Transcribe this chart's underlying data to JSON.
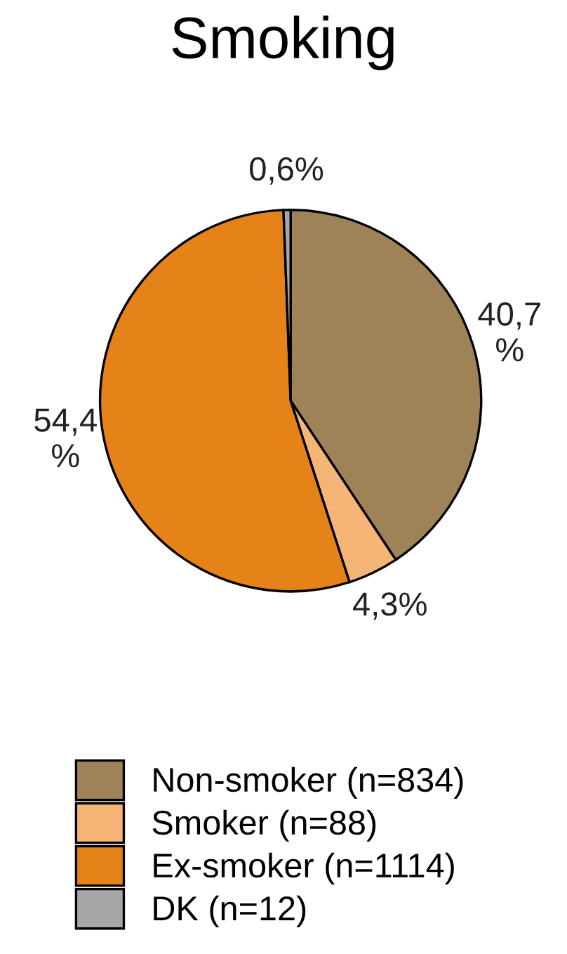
{
  "chart_data": {
    "type": "pie",
    "title": "Smoking",
    "categories": [
      "Non-smoker (n=834)",
      "Smoker (n=88)",
      "Ex-smoker (n=1114)",
      "DK (n=12)"
    ],
    "values": [
      40.7,
      4.3,
      54.4,
      0.6
    ],
    "colors": [
      "#9e8358",
      "#f5b577",
      "#e58318",
      "#a6a6a6"
    ],
    "value_labels": [
      "40,7\n%",
      "4,3%",
      "54,4\n%",
      "0,6%"
    ],
    "legend": "bottom"
  }
}
